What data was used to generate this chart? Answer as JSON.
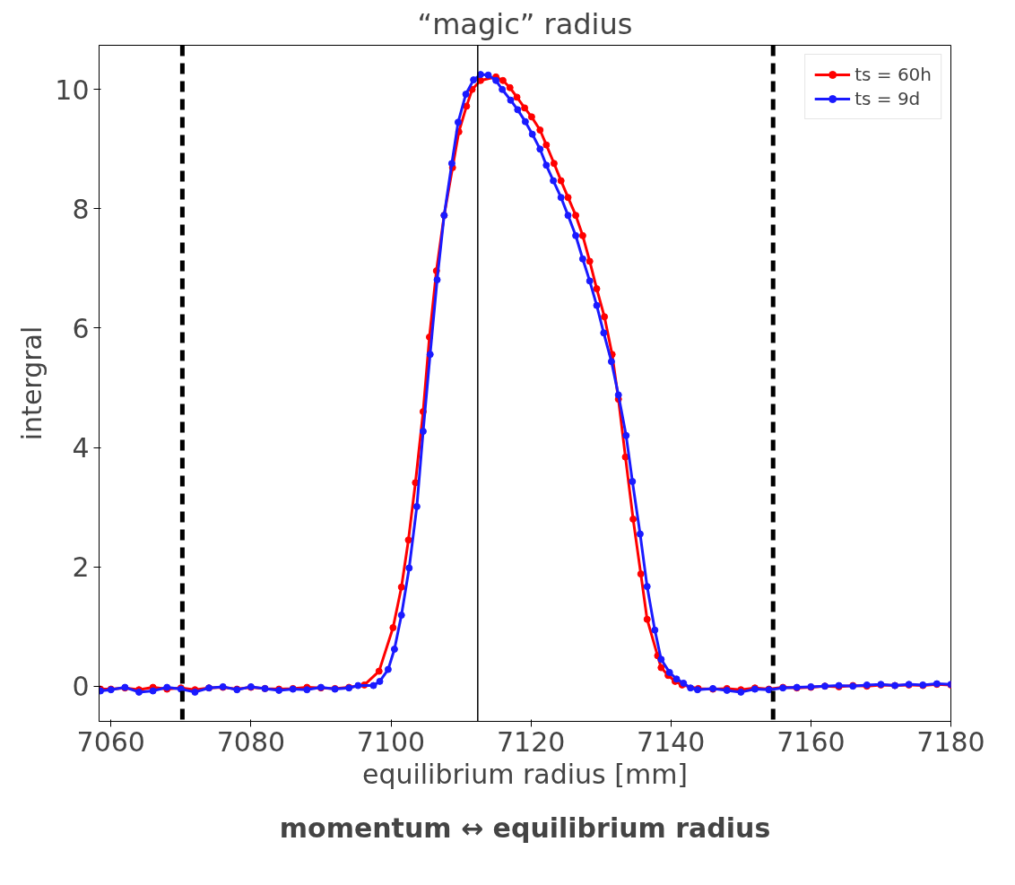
{
  "chart_data": {
    "type": "line",
    "xlabel": "equilibrium radius [mm]",
    "ylabel": "intergral",
    "xlim": [
      7058.3,
      7180
    ],
    "ylim": [
      -0.59,
      10.74
    ],
    "xticks": [
      7060,
      7080,
      7100,
      7120,
      7140,
      7160,
      7180
    ],
    "yticks": [
      0,
      2,
      4,
      6,
      8,
      10
    ],
    "grid": false,
    "legend": "top right",
    "marker": "circle",
    "line_style": "solid",
    "series": [
      {
        "name": "ts = 60h",
        "color": "#ff0000",
        "x": [
          7058.5,
          7060,
          7062,
          7064,
          7066,
          7068,
          7070,
          7072,
          7074,
          7076,
          7078,
          7080,
          7082,
          7084,
          7086,
          7088,
          7090,
          7092,
          7094,
          7096.2,
          7098.3,
          7100.3,
          7101.5,
          7102.5,
          7103.5,
          7104.6,
          7105.5,
          7106.5,
          7107.6,
          7108.8,
          7109.7,
          7110.8,
          7111.6,
          7112.8,
          7115.0,
          7116.0,
          7117.0,
          7118.0,
          7119.1,
          7120.1,
          7121.3,
          7122.2,
          7123.3,
          7124.3,
          7125.3,
          7126.4,
          7127.4,
          7128.4,
          7129.4,
          7130.5,
          7131.6,
          7132.5,
          7133.5,
          7134.6,
          7135.7,
          7136.6,
          7138.1,
          7138.6,
          7139.6,
          7140.6,
          7141.6,
          7143.9,
          7146,
          7148,
          7150,
          7152,
          7154,
          7156,
          7158,
          7160,
          7162,
          7164,
          7166,
          7168,
          7170,
          7172,
          7174,
          7176,
          7178,
          7180
        ],
        "values": [
          -0.05,
          -0.05,
          -0.03,
          -0.06,
          -0.02,
          -0.05,
          -0.03,
          -0.06,
          -0.03,
          -0.02,
          -0.05,
          -0.02,
          -0.04,
          -0.05,
          -0.04,
          -0.02,
          -0.03,
          -0.04,
          -0.02,
          0.02,
          0.25,
          0.98,
          1.66,
          2.45,
          3.41,
          4.6,
          5.85,
          6.96,
          7.89,
          8.69,
          9.29,
          9.72,
          10.0,
          10.15,
          10.21,
          10.15,
          10.03,
          9.87,
          9.69,
          9.54,
          9.32,
          9.07,
          8.76,
          8.47,
          8.19,
          7.89,
          7.55,
          7.12,
          6.66,
          6.19,
          5.56,
          4.81,
          3.84,
          2.8,
          1.88,
          1.12,
          0.51,
          0.31,
          0.18,
          0.08,
          0.02,
          -0.04,
          -0.05,
          -0.04,
          -0.06,
          -0.03,
          -0.05,
          -0.02,
          -0.03,
          -0.02,
          0.0,
          -0.01,
          0.01,
          0.0,
          0.02,
          0.01,
          0.02,
          0.01,
          0.03,
          0.02
        ]
      },
      {
        "name": "ts = 9d",
        "color": "#1a1aff",
        "x": [
          7058.5,
          7060,
          7062,
          7064,
          7066,
          7068,
          7070,
          7072,
          7074,
          7076,
          7078,
          7080,
          7082,
          7084,
          7086,
          7088,
          7090,
          7092,
          7094,
          7095.3,
          7097.5,
          7098.4,
          7099.6,
          7100.5,
          7101.5,
          7102.6,
          7103.7,
          7104.6,
          7105.6,
          7106.6,
          7107.6,
          7108.7,
          7109.6,
          7110.7,
          7111.8,
          7112.8,
          7113.9,
          7115.0,
          7115.9,
          7117.1,
          7118.1,
          7119.2,
          7120.2,
          7121.3,
          7122.2,
          7123.2,
          7124.3,
          7125.3,
          7126.4,
          7127.4,
          7128.4,
          7129.4,
          7130.4,
          7131.5,
          7132.5,
          7133.6,
          7134.5,
          7135.6,
          7136.6,
          7137.7,
          7138.6,
          7139.8,
          7140.8,
          7141.8,
          7142.8,
          7143.8,
          7146,
          7148,
          7150,
          7152,
          7154,
          7156,
          7158,
          7160,
          7162,
          7164,
          7166,
          7168,
          7170,
          7172,
          7174,
          7176,
          7178,
          7180
        ],
        "values": [
          -0.08,
          -0.06,
          -0.02,
          -0.1,
          -0.08,
          -0.02,
          -0.05,
          -0.1,
          -0.03,
          -0.01,
          -0.06,
          -0.01,
          -0.04,
          -0.07,
          -0.05,
          -0.06,
          -0.02,
          -0.05,
          -0.03,
          0.01,
          0.01,
          0.08,
          0.28,
          0.62,
          1.19,
          1.98,
          3.01,
          4.27,
          5.56,
          6.81,
          7.89,
          8.76,
          9.45,
          9.92,
          10.16,
          10.25,
          10.24,
          10.15,
          10.0,
          9.82,
          9.66,
          9.46,
          9.25,
          9.0,
          8.73,
          8.47,
          8.19,
          7.89,
          7.55,
          7.16,
          6.79,
          6.38,
          5.92,
          5.44,
          4.88,
          4.2,
          3.43,
          2.55,
          1.67,
          0.94,
          0.45,
          0.23,
          0.12,
          0.05,
          -0.03,
          -0.06,
          -0.04,
          -0.07,
          -0.1,
          -0.05,
          -0.06,
          -0.03,
          -0.02,
          -0.01,
          0.0,
          0.01,
          0.0,
          0.02,
          0.03,
          0.01,
          0.03,
          0.02,
          0.04,
          0.03
        ]
      }
    ],
    "ref_lines": [
      {
        "axis": "x",
        "value": 7070.2,
        "color": "#000000",
        "line_style": "dashed"
      },
      {
        "axis": "x",
        "value": 7112.4,
        "label": "“magic” radius",
        "color": "#000000",
        "line_style": "solid"
      },
      {
        "axis": "x",
        "value": 7154.6,
        "color": "#000000",
        "line_style": "dashed"
      }
    ],
    "annotations": [
      "momentum ↔ equilibrium radius"
    ]
  }
}
